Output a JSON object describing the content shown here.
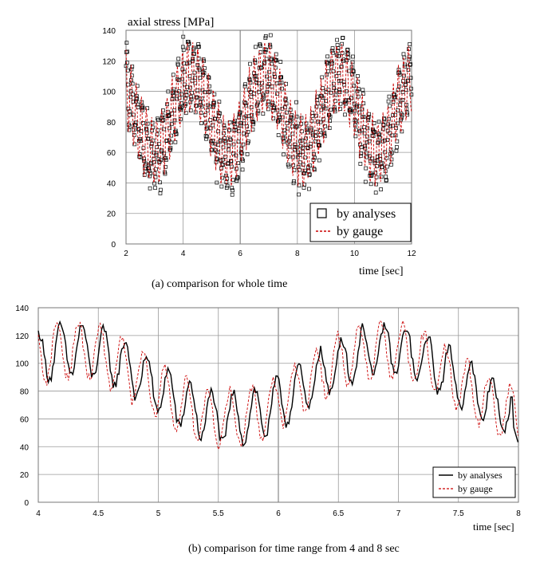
{
  "chart_data": [
    {
      "type": "scatter",
      "title": "",
      "ylabel": "axial stress [MPa]",
      "xlabel": "time [sec]",
      "xlim": [
        2,
        12
      ],
      "ylim": [
        0,
        140
      ],
      "xticks": [
        2,
        4,
        6,
        8,
        10,
        12
      ],
      "yticks": [
        0,
        20,
        40,
        60,
        80,
        100,
        120,
        140
      ],
      "grid": true,
      "legend_position": "bottom-right",
      "caption": "(a) comparison for whole time",
      "series": [
        {
          "name": "by analyses",
          "style": "open-square markers",
          "color": "#000000",
          "trend": {
            "mean": 85,
            "wave_amplitude": 27,
            "wave_period_sec": 2.6,
            "wave_phase_time_of_peak_sec": 4.3,
            "ripple_amplitude": 20,
            "ripple_period_sec": 0.18
          }
        },
        {
          "name": "by gauge",
          "style": "dashed line",
          "color": "#cc0000",
          "trend": {
            "mean": 85,
            "wave_amplitude": 25,
            "wave_period_sec": 2.6,
            "wave_phase_time_of_peak_sec": 4.3,
            "ripple_amplitude": 22,
            "ripple_period_sec": 0.18
          }
        }
      ]
    },
    {
      "type": "line",
      "title": "",
      "ylabel": "",
      "xlabel": "time [sec]",
      "xlim": [
        4,
        8
      ],
      "ylim": [
        0,
        140
      ],
      "xticks": [
        4,
        4.5,
        5,
        5.5,
        6,
        6.5,
        7,
        7.5,
        8
      ],
      "yticks": [
        0,
        20,
        40,
        60,
        80,
        100,
        120,
        140
      ],
      "grid": true,
      "legend_position": "bottom-right",
      "caption": "(b) comparison for time range from 4 and 8 sec",
      "series": [
        {
          "name": "by analyses",
          "style": "solid line",
          "color": "#000000",
          "trend": {
            "mean": 85,
            "wave_amplitude": 25,
            "wave_period_sec": 2.6,
            "wave_phase_time_of_peak_sec": 4.3,
            "ripple_amplitude": 18,
            "ripple_period_sec": 0.18,
            "end_value": 42
          }
        },
        {
          "name": "by gauge",
          "style": "dashed line",
          "color": "#cc0000",
          "trend": {
            "mean": 85,
            "wave_amplitude": 25,
            "wave_period_sec": 2.6,
            "wave_phase_time_of_peak_sec": 4.3,
            "ripple_amplitude": 20,
            "ripple_period_sec": 0.18
          }
        }
      ]
    }
  ]
}
